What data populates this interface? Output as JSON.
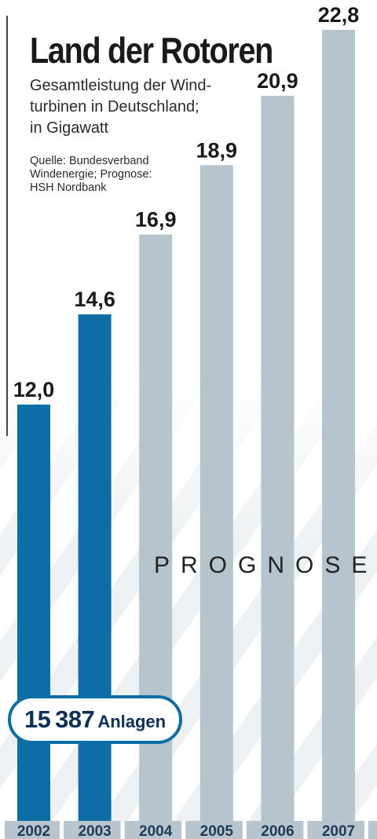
{
  "chart_data": {
    "type": "bar",
    "title": "Land der Rotoren",
    "subtitle": "Gesamtleistung der Wind-turbinen in Deutschland; in Gigawatt",
    "subtitle_lines": [
      "Gesamtleistung der Wind-",
      "turbinen in Deutschland;",
      "in Gigawatt"
    ],
    "source_lines": [
      "Quelle: Bundesverband",
      "Windenergie; Prognose:",
      "HSH Nordbank"
    ],
    "categories": [
      "2002",
      "2003",
      "2004",
      "2005",
      "2006",
      "2007"
    ],
    "values": [
      12.0,
      14.6,
      16.9,
      18.9,
      20.9,
      22.8
    ],
    "value_labels": [
      "12,0",
      "14,6",
      "16,9",
      "18,9",
      "20,9",
      "22,8"
    ],
    "forecast": [
      false,
      false,
      true,
      true,
      true,
      true
    ],
    "forecast_label": "PROGNOSE",
    "annotation": {
      "number": "15 387",
      "unit": "Anlagen"
    },
    "ylim": [
      0,
      22.8
    ],
    "grid": false,
    "colors": {
      "actual": "#0d6ea5",
      "forecast": "#b5c4cd",
      "year_band": "#b8c5cd",
      "year_text": "#1f3a5a",
      "stripes": "#eef1f3",
      "value_text": "#1a1a1a"
    }
  }
}
